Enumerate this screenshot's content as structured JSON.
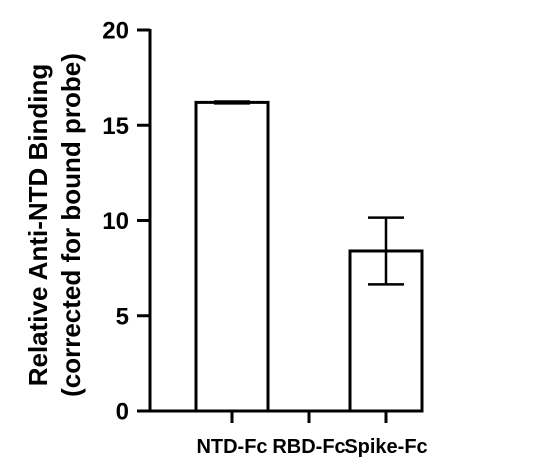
{
  "chart_data": {
    "type": "bar",
    "title": "",
    "xlabel": "",
    "ylabel_lines": [
      "Relative Anti-NTD Binding",
      "(corrected for bound probe)"
    ],
    "categories": [
      "NTD-Fc",
      "RBD-Fc",
      "Spike-Fc"
    ],
    "values": [
      16.2,
      0,
      8.4
    ],
    "errors": [
      0.05,
      0,
      1.75
    ],
    "ylim": [
      0,
      20
    ],
    "yticks": [
      "0",
      "5",
      "10",
      "15",
      "20"
    ],
    "grid": false,
    "legend": "none",
    "bar_fill": "#ffffff",
    "bar_stroke": "#000000"
  }
}
